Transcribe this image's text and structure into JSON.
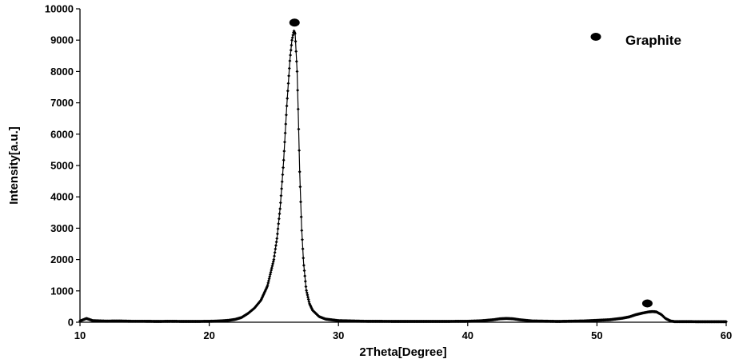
{
  "chart_data": {
    "type": "line",
    "title": "",
    "xlabel": "2Theta[Degree]",
    "ylabel": "Intensity[a.u.]",
    "xlim": [
      10,
      60
    ],
    "ylim": [
      0,
      10000
    ],
    "xticks": [
      "10",
      "20",
      "30",
      "40",
      "50",
      "60"
    ],
    "yticks": [
      "0",
      "1000",
      "2000",
      "3000",
      "4000",
      "5000",
      "6000",
      "7000",
      "8000",
      "9000",
      "10000"
    ],
    "grid": false,
    "legend": {
      "position": "top-right",
      "entries": [
        {
          "label": "Graphite",
          "marker": "filled-ellipse",
          "color": "#000000"
        }
      ]
    },
    "series": [
      {
        "name": "",
        "color": "#000000",
        "marker": "small-diamond",
        "x": [
          10,
          10.5,
          11,
          12,
          13,
          14,
          15,
          16,
          17,
          18,
          19,
          20,
          20.5,
          21,
          21.5,
          22,
          22.5,
          23,
          23.5,
          24,
          24.5,
          25,
          25.25,
          25.5,
          25.75,
          26,
          26.25,
          26.4,
          26.55,
          26.65,
          26.8,
          26.9,
          27,
          27.15,
          27.3,
          27.5,
          27.75,
          28,
          28.5,
          29,
          30,
          32,
          35,
          38,
          40,
          41,
          42,
          42.5,
          43,
          43.5,
          44,
          45,
          47,
          49,
          51,
          52,
          52.5,
          53,
          53.5,
          54,
          54.3,
          54.6,
          55,
          55.3,
          55.7,
          56,
          57,
          58,
          59,
          60
        ],
        "y": [
          40,
          120,
          50,
          35,
          40,
          30,
          30,
          25,
          30,
          25,
          25,
          30,
          35,
          45,
          60,
          90,
          150,
          280,
          450,
          700,
          1150,
          2000,
          2700,
          3700,
          5100,
          6900,
          8400,
          9000,
          9300,
          9200,
          8000,
          6500,
          4800,
          3000,
          1900,
          1050,
          600,
          380,
          180,
          100,
          50,
          30,
          25,
          25,
          30,
          45,
          80,
          110,
          120,
          110,
          80,
          40,
          25,
          40,
          80,
          130,
          170,
          240,
          290,
          330,
          340,
          330,
          240,
          120,
          40,
          20,
          20,
          15,
          15,
          15
        ]
      }
    ],
    "annotations": [
      {
        "text": "",
        "marker": "filled-ellipse",
        "x": 26.6,
        "y": 9560,
        "label": "Graphite"
      },
      {
        "text": "",
        "marker": "filled-ellipse",
        "x": 53.9,
        "y": 600,
        "label": "Graphite"
      }
    ]
  }
}
